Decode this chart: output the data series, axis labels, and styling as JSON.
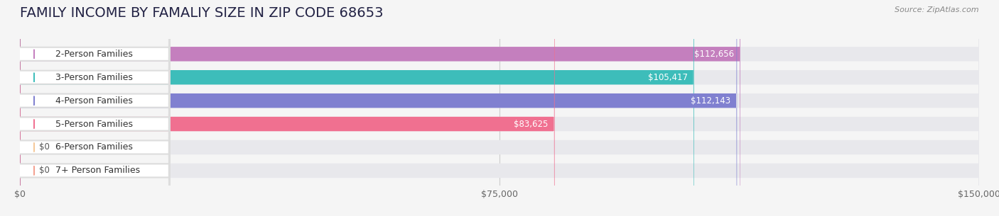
{
  "title": "FAMILY INCOME BY FAMALIY SIZE IN ZIP CODE 68653",
  "source": "Source: ZipAtlas.com",
  "categories": [
    "2-Person Families",
    "3-Person Families",
    "4-Person Families",
    "5-Person Families",
    "6-Person Families",
    "7+ Person Families"
  ],
  "values": [
    112656,
    105417,
    112143,
    83625,
    0,
    0
  ],
  "bar_colors": [
    "#c47fbe",
    "#3dbdba",
    "#8080d0",
    "#f07090",
    "#f5c898",
    "#f4a090"
  ],
  "bar_colors_light": [
    "#e8c8e8",
    "#a0dedd",
    "#c0c0e8",
    "#f8b8cc",
    "#fae4c4",
    "#fac8bc"
  ],
  "label_colors": [
    "#ffffff",
    "#ffffff",
    "#ffffff",
    "#555555",
    "#555555",
    "#555555"
  ],
  "bg_color": "#f5f5f5",
  "bar_bg_color": "#eeeeee",
  "xlim": [
    0,
    150000
  ],
  "xticks": [
    0,
    75000,
    150000
  ],
  "xticklabels": [
    "$0",
    "$75,000",
    "$150,000"
  ],
  "bar_height": 0.62,
  "title_fontsize": 14,
  "label_fontsize": 9,
  "tick_fontsize": 9,
  "value_fontsize": 8.5
}
